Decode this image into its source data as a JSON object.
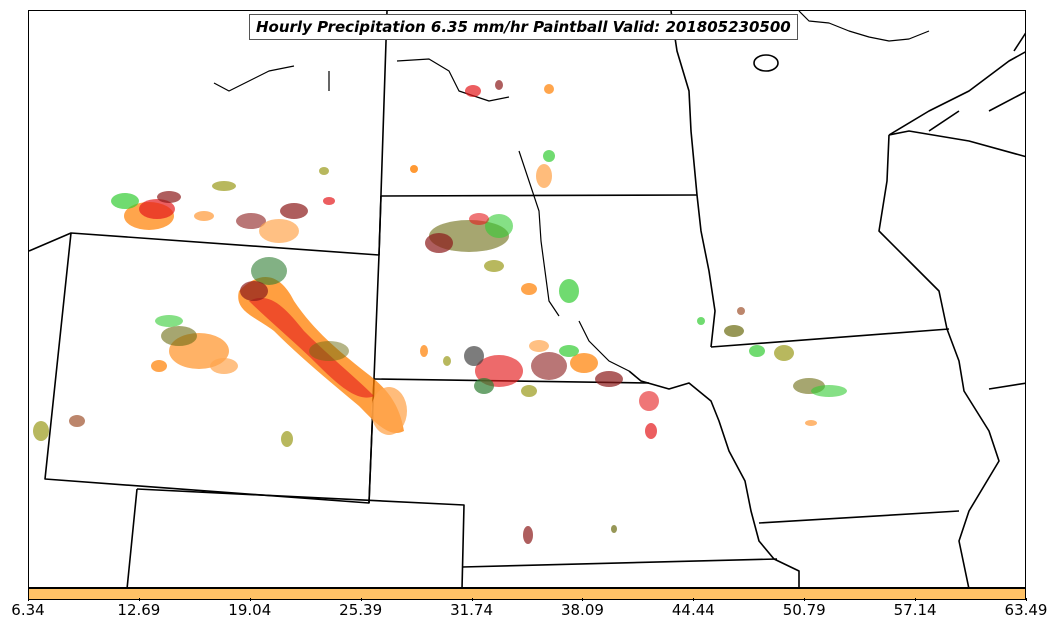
{
  "title": "Hourly Precipitation 6.35 mm/hr Paintball Valid: 201805230500",
  "colorbar": {
    "color": "#ffc266",
    "ticks": [
      "6.34",
      "12.69",
      "19.04",
      "25.39",
      "31.74",
      "38.09",
      "44.44",
      "50.79",
      "57.14",
      "63.49"
    ]
  },
  "palette": {
    "red": "#e41a1c",
    "dark_red": "#8b1a1a",
    "orange": "#ff7f00",
    "light_orange": "#ffa54f",
    "green": "#33cc33",
    "dark_green": "#2e7d32",
    "olive": "#9a9a1a",
    "dark_olive": "#6b6b10",
    "brown": "#a0522d",
    "dark_gray": "#444444"
  }
}
